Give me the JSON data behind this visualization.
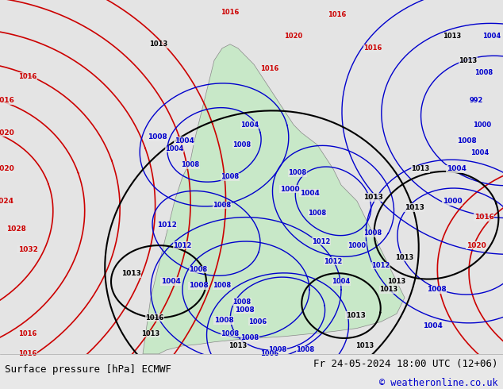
{
  "title_left": "Surface pressure [hPa] ECMWF",
  "title_right": "Fr 24-05-2024 18:00 UTC (12+06)",
  "copyright": "© weatheronline.co.uk",
  "copyright_color": "#0000cc",
  "bg_color": "#e8e8e8",
  "map_bg_color": "#f0f0f0",
  "land_color": "#d0d0d0",
  "ocean_color": "#e0e0e0",
  "bottom_bar_color": "#f0f0f0",
  "bottom_bar_height": 0.09,
  "fig_width": 6.34,
  "fig_height": 4.9,
  "dpi": 100,
  "title_fontsize": 9,
  "copyright_fontsize": 8.5
}
